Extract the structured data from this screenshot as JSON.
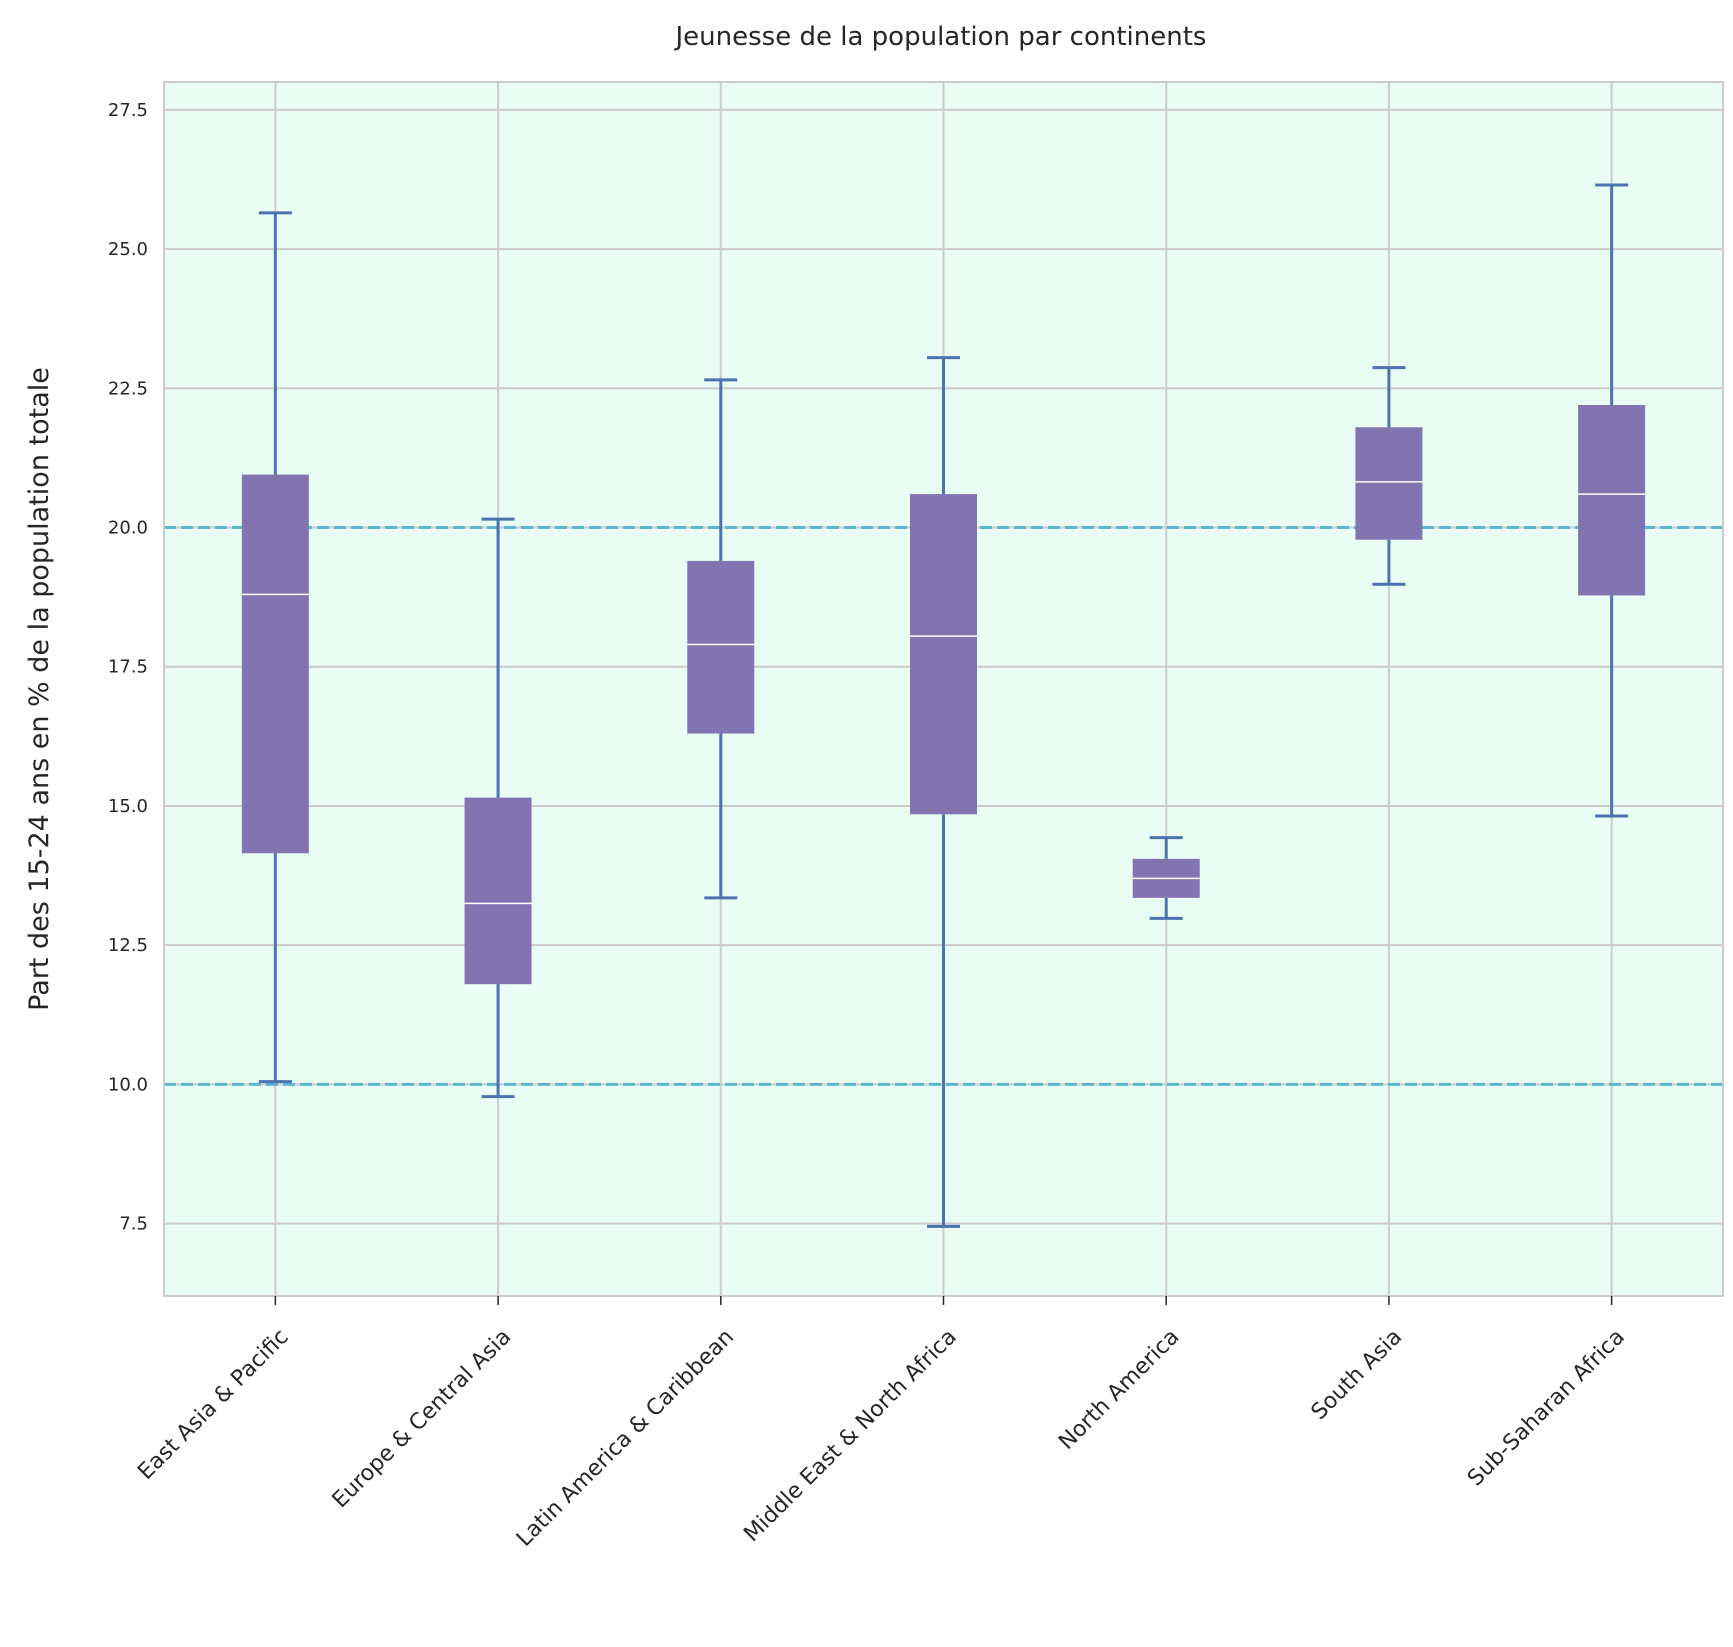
{
  "chart_data": {
    "type": "boxplot",
    "title": "Jeunesse de la population par continents",
    "xlabel": "",
    "ylabel": "Part des 15-24 ans en % de la population totale",
    "ylim": [
      6.2,
      28.0
    ],
    "yticks": [
      7.5,
      10.0,
      12.5,
      15.0,
      17.5,
      20.0,
      22.5,
      25.0,
      27.5
    ],
    "ytick_labels": [
      "7.5",
      "10.0",
      "12.5",
      "15.0",
      "17.5",
      "20.0",
      "22.5",
      "25.0",
      "27.5"
    ],
    "grid": true,
    "reference_lines": [
      10.0,
      20.0
    ],
    "colors": {
      "plot_background": "#e9fdf4",
      "box_fill": "#8274b1",
      "median": "#ffffff",
      "whisker": "#4c72b0",
      "reference_line": "#5db5cf",
      "grid": "#cccccc",
      "frame": "#cccccc"
    },
    "categories": [
      "East Asia & Pacific",
      "Europe & Central Asia",
      "Latin America & Caribbean",
      "Middle East & North Africa",
      "North America",
      "South Asia",
      "Sub-Saharan Africa"
    ],
    "boxes": [
      {
        "whislo": 10.05,
        "q1": 14.15,
        "med": 18.8,
        "q3": 20.95,
        "whishi": 25.65
      },
      {
        "whislo": 9.78,
        "q1": 11.8,
        "med": 13.25,
        "q3": 15.15,
        "whishi": 20.15
      },
      {
        "whislo": 13.35,
        "q1": 16.3,
        "med": 17.9,
        "q3": 19.4,
        "whishi": 22.65
      },
      {
        "whislo": 7.45,
        "q1": 14.85,
        "med": 18.05,
        "q3": 20.6,
        "whishi": 23.05
      },
      {
        "whislo": 12.98,
        "q1": 13.35,
        "med": 13.7,
        "q3": 14.05,
        "whishi": 14.43
      },
      {
        "whislo": 18.98,
        "q1": 19.78,
        "med": 20.82,
        "q3": 21.8,
        "whishi": 22.87
      },
      {
        "whislo": 14.82,
        "q1": 18.78,
        "med": 20.6,
        "q3": 22.2,
        "whishi": 26.15
      }
    ]
  }
}
